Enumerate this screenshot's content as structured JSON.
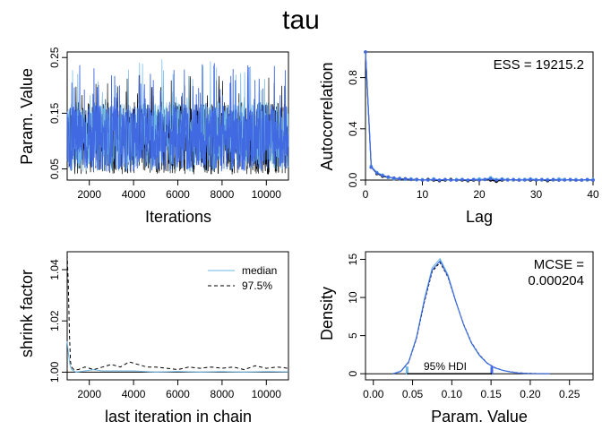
{
  "title": "tau",
  "colors": {
    "chain_blue": "#4169e1",
    "chain_black": "#000000",
    "chain_lightblue": "#6fb7e3",
    "axis": "#000000"
  },
  "chart_data": [
    {
      "id": "trace",
      "type": "line",
      "xlabel": "Iterations",
      "ylabel": "Param. Value",
      "xlim": [
        1000,
        11000
      ],
      "ylim": [
        0.03,
        0.26
      ],
      "xticks": [
        2000,
        4000,
        6000,
        8000,
        10000
      ],
      "xtick_labels": [
        "2000",
        "4000",
        "6000",
        "8000",
        "10000"
      ],
      "yticks": [
        0.05,
        0.15,
        0.25
      ],
      "ytick_labels": [
        "0.05",
        "0.15",
        "0.25"
      ],
      "series": [
        {
          "color": "#000000",
          "central_band": [
            0.04,
            0.17
          ],
          "max": 0.22
        },
        {
          "color": "#6fb7e3",
          "central_band": [
            0.045,
            0.17
          ],
          "max": 0.25
        },
        {
          "color": "#4169e1",
          "central_band": [
            0.045,
            0.165
          ],
          "max": 0.24
        }
      ]
    },
    {
      "id": "autocorrelation",
      "type": "line",
      "xlabel": "Lag",
      "ylabel": "Autocorrelation",
      "annotation": "ESS = 19215.2",
      "xlim": [
        0,
        40
      ],
      "ylim": [
        0,
        1
      ],
      "xticks": [
        0,
        10,
        20,
        30,
        40
      ],
      "xtick_labels": [
        "0",
        "10",
        "20",
        "30",
        "40"
      ],
      "yticks": [
        0,
        0.4,
        0.8
      ],
      "ytick_labels": [
        "0.0",
        "0.4",
        "0.8"
      ],
      "lags": [
        0,
        1,
        2,
        3,
        4,
        5,
        6,
        7,
        8,
        9,
        10,
        11,
        12,
        13,
        14,
        15,
        16,
        17,
        18,
        19,
        20,
        21,
        22,
        23,
        24,
        25,
        26,
        27,
        28,
        29,
        30,
        31,
        32,
        33,
        34,
        35,
        36,
        37,
        38,
        39,
        40
      ],
      "series": [
        {
          "color": "#000000",
          "values": [
            1.0,
            0.1,
            0.05,
            0.03,
            0.02,
            0.015,
            0.01,
            0.01,
            0.005,
            0.005,
            0.0,
            0.005,
            0.0,
            -0.005,
            0.0,
            0.005,
            0.0,
            0.0,
            -0.005,
            0.0,
            0.0,
            0.005,
            0.0,
            -0.01,
            0.0,
            0.005,
            0.0,
            0.0,
            0.005,
            0.0,
            0.0,
            0.0,
            -0.005,
            0.0,
            0.0,
            0.005,
            0.0,
            0.0,
            0.0,
            0.0,
            0.0
          ]
        },
        {
          "color": "#6fb7e3",
          "values": [
            1.0,
            0.11,
            0.06,
            0.04,
            0.02,
            0.01,
            0.015,
            0.005,
            0.01,
            0.0,
            0.005,
            0.0,
            0.01,
            0.0,
            0.005,
            0.0,
            0.005,
            0.005,
            0.0,
            0.005,
            0.01,
            0.005,
            0.02,
            0.005,
            0.01,
            0.005,
            0.0,
            0.005,
            0.005,
            0.01,
            0.005,
            0.0,
            0.005,
            0.0,
            0.01,
            0.005,
            0.0,
            0.005,
            0.0,
            0.0,
            0.005
          ]
        },
        {
          "color": "#4169e1",
          "values": [
            1.0,
            0.1,
            0.055,
            0.035,
            0.025,
            0.015,
            0.01,
            0.01,
            0.005,
            0.005,
            0.0,
            0.0,
            0.005,
            0.0,
            0.005,
            0.0,
            0.0,
            0.005,
            0.0,
            0.005,
            0.0,
            0.005,
            0.01,
            0.0,
            0.005,
            0.0,
            0.005,
            0.0,
            0.0,
            0.005,
            0.0,
            0.005,
            0.0,
            0.005,
            0.0,
            0.0,
            0.005,
            0.0,
            0.0,
            0.005,
            0.0
          ]
        }
      ]
    },
    {
      "id": "shrink",
      "type": "line",
      "xlabel": "last iteration in chain",
      "ylabel": "shrink factor",
      "xlim": [
        1000,
        11000
      ],
      "ylim": [
        0.997,
        1.047
      ],
      "xticks": [
        2000,
        4000,
        6000,
        8000,
        10000
      ],
      "xtick_labels": [
        "2000",
        "4000",
        "6000",
        "8000",
        "10000"
      ],
      "yticks": [
        1.0,
        1.02,
        1.04
      ],
      "ytick_labels": [
        "1.00",
        "1.02",
        "1.04"
      ],
      "legend": {
        "position": "top-right",
        "entries": [
          "median",
          "97.5%"
        ]
      },
      "series": [
        {
          "name": "median",
          "color": "#6fb7e3",
          "dash": "solid",
          "x": [
            1000,
            1060,
            1120,
            1200,
            1400,
            1800,
            2200,
            2600,
            3000,
            3500,
            4000,
            5000,
            6000,
            7000,
            8000,
            9000,
            10000,
            11000
          ],
          "values": [
            1.012,
            1.007,
            1.003,
            1.001,
            1.0,
            1.0005,
            1.001,
            1.0005,
            1.0005,
            1.0005,
            1.0005,
            1.0,
            1.0003,
            1.0,
            1.0002,
            1.0,
            1.0002,
            1.0001
          ]
        },
        {
          "name": "97.5%",
          "color": "#000000",
          "dash": "dashed",
          "x": [
            1000,
            1050,
            1100,
            1150,
            1200,
            1300,
            1500,
            1800,
            2200,
            2600,
            3000,
            3400,
            3800,
            4200,
            4600,
            5000,
            5500,
            6000,
            6500,
            7000,
            7500,
            8000,
            8500,
            9000,
            9500,
            10000,
            10500,
            11000
          ],
          "values": [
            1.046,
            1.035,
            1.015,
            1.004,
            1.002,
            1.001,
            1.001,
            1.002,
            1.001,
            1.002,
            1.003,
            1.002,
            1.004,
            1.003,
            1.002,
            1.002,
            1.0015,
            1.001,
            1.002,
            1.0015,
            1.002,
            1.0015,
            1.002,
            1.001,
            1.0025,
            1.0015,
            1.002,
            1.0015
          ]
        }
      ]
    },
    {
      "id": "density",
      "type": "line",
      "xlabel": "Param. Value",
      "ylabel": "Density",
      "annotation_lines": [
        "MCSE =",
        "0.000204"
      ],
      "hdi_label": "95% HDI",
      "hdi": [
        0.043,
        0.151
      ],
      "xlim": [
        -0.01,
        0.28
      ],
      "ylim": [
        -0.8,
        16
      ],
      "xticks": [
        0.0,
        0.05,
        0.1,
        0.15,
        0.2,
        0.25
      ],
      "xtick_labels": [
        "0.00",
        "0.05",
        "0.10",
        "0.15",
        "0.20",
        "0.25"
      ],
      "yticks": [
        0,
        5,
        10,
        15
      ],
      "ytick_labels": [
        "0",
        "5",
        "10",
        "15"
      ],
      "x": [
        0.025,
        0.035,
        0.045,
        0.055,
        0.065,
        0.075,
        0.085,
        0.095,
        0.105,
        0.115,
        0.125,
        0.135,
        0.145,
        0.155,
        0.165,
        0.175,
        0.185,
        0.195,
        0.205,
        0.215,
        0.225
      ],
      "series": [
        {
          "color": "#000000",
          "values": [
            0.0,
            0.3,
            1.5,
            4.6,
            9.4,
            13.4,
            14.6,
            12.7,
            9.5,
            6.5,
            4.1,
            2.5,
            1.4,
            0.8,
            0.45,
            0.25,
            0.12,
            0.06,
            0.03,
            0.01,
            0.0
          ]
        },
        {
          "color": "#6fb7e3",
          "values": [
            0.0,
            0.35,
            1.6,
            4.8,
            9.8,
            13.9,
            15.1,
            13.0,
            9.6,
            6.4,
            4.0,
            2.4,
            1.35,
            0.75,
            0.42,
            0.22,
            0.11,
            0.05,
            0.02,
            0.01,
            0.0
          ]
        },
        {
          "color": "#4169e1",
          "values": [
            0.0,
            0.3,
            1.55,
            4.7,
            9.6,
            13.6,
            14.8,
            12.8,
            9.5,
            6.45,
            4.05,
            2.45,
            1.38,
            0.78,
            0.44,
            0.23,
            0.11,
            0.05,
            0.02,
            0.01,
            0.0
          ]
        }
      ]
    }
  ]
}
